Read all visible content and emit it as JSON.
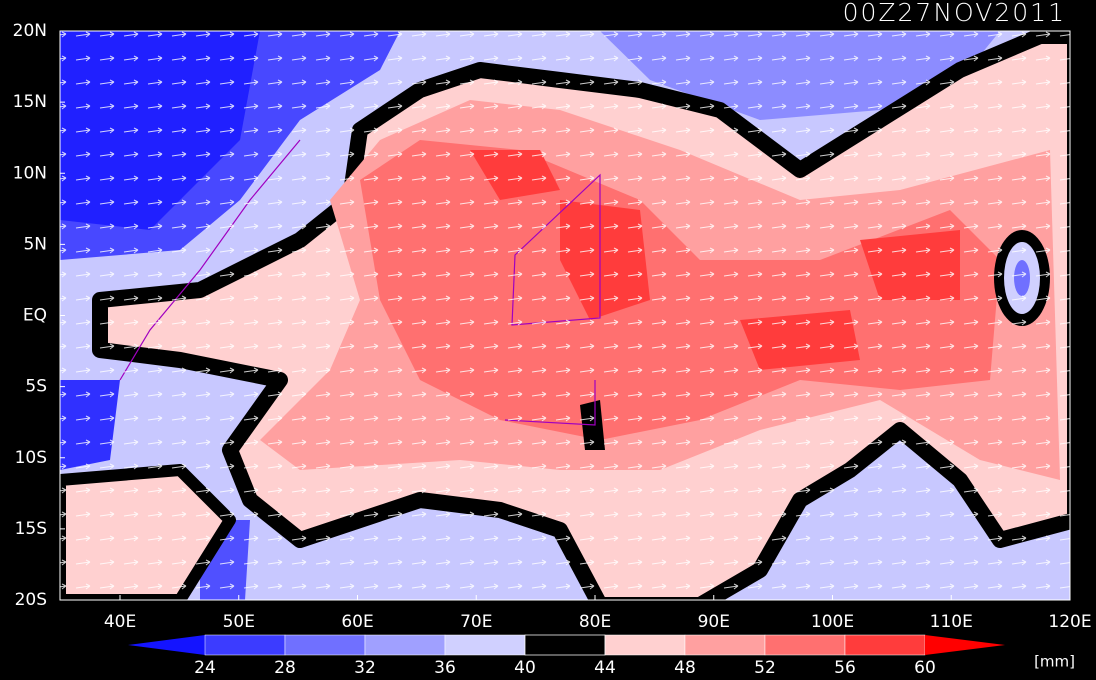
{
  "header": {
    "title": "00Z27NOV2011"
  },
  "map": {
    "lat_labels": [
      "20N",
      "15N",
      "10N",
      "5N",
      "EQ",
      "5S",
      "10S",
      "15S",
      "20S"
    ],
    "lon_labels": [
      "40E",
      "50E",
      "60E",
      "70E",
      "80E",
      "90E",
      "100E",
      "110E",
      "120E"
    ]
  },
  "colorbar": {
    "levels": [
      24,
      28,
      32,
      36,
      40,
      44,
      48,
      52,
      56,
      60
    ],
    "colors": [
      "#1414ff",
      "#3c3cff",
      "#7070ff",
      "#a0a0ff",
      "#d0d0ff",
      "#000000",
      "#ffd0d0",
      "#ffa0a0",
      "#ff7070",
      "#ff3c3c",
      "#ff0000"
    ],
    "unit": "[mm]"
  }
}
